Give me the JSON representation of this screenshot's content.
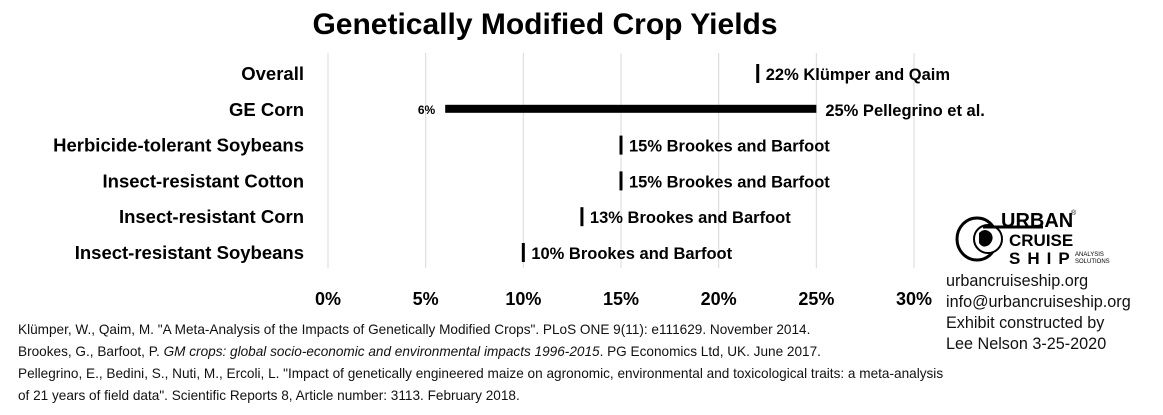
{
  "chart_data": {
    "type": "bar",
    "orientation": "horizontal",
    "title": "Genetically Modified Crop Yields",
    "categories": [
      "Overall",
      "GE Corn",
      "Herbicide-tolerant Soybeans",
      "Insect-resistant Cotton",
      "Insect-resistant Corn",
      "Insect-resistant Soybeans"
    ],
    "values": [
      22,
      25,
      15,
      15,
      13,
      10
    ],
    "range_low": [
      null,
      6,
      null,
      null,
      null,
      null
    ],
    "labels": [
      "22% Klümper and Qaim",
      "25% Pellegrino et al.",
      "15% Brookes and Barfoot",
      "15% Brookes and Barfoot",
      "13% Brookes and Barfoot",
      "10% Brookes and Barfoot"
    ],
    "low_labels": [
      null,
      "6%",
      null,
      null,
      null,
      null
    ],
    "xlim": [
      0,
      30
    ],
    "xticks": [
      0,
      5,
      10,
      15,
      20,
      25,
      30
    ],
    "xtick_labels": [
      "0%",
      "5%",
      "10%",
      "15%",
      "20%",
      "25%",
      "30%"
    ],
    "grid": "vertical",
    "legend": "none",
    "mark_color": "#000000",
    "grid_color": "#d9d9d9"
  },
  "references": [
    {
      "text": "Klümper, W., Qaim, M. \"A Meta-Analysis of the Impacts of Genetically Modified Crops\". PLoS ONE 9(11): e111629. November 2014."
    },
    {
      "pre": "Brookes, G., Barfoot, P. ",
      "ital": "GM crops: global socio-economic and environmental impacts 1996-2015",
      "post": ". PG Economics Ltd, UK. June 2017."
    },
    {
      "text": "Pellegrino, E., Bedini, S., Nuti, M., Ercoli, L. \"Impact of genetically engineered maize on agronomic, environmental and toxicological traits: a meta-analysis of 21 years of field data\". Scientific Reports 8, Article number: 3113. February 2018."
    }
  ],
  "contact": {
    "website": "urbancruiseship.org",
    "email": "info@urbancruiseship.org",
    "credit_line1": "Exhibit constructed by",
    "credit_line2": "Lee Nelson 3-25-2020"
  },
  "logo": {
    "word1": "URBAN",
    "word2": "CRUISE",
    "word3": "SHIP",
    "tag1": "ANALYSIS",
    "tag2": "SOLUTIONS",
    "mark": "®",
    "icon": "globe-icon"
  }
}
